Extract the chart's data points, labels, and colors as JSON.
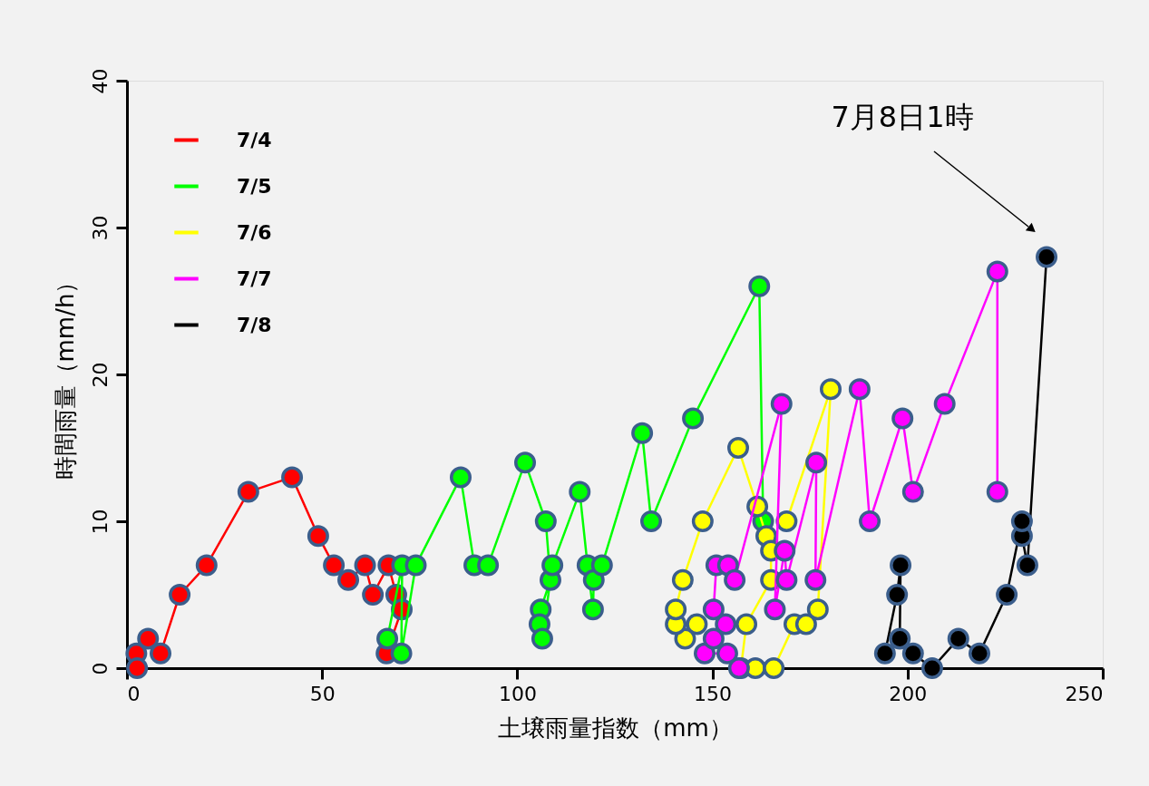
{
  "chart_data": {
    "type": "line",
    "xlabel": "土壌雨量指数（mm）",
    "ylabel": "時間雨量（mm/h）",
    "xlim": [
      0,
      250
    ],
    "xticks": [
      0,
      50,
      100,
      150,
      200,
      250
    ],
    "ylim": [
      0,
      40
    ],
    "yticks": [
      0,
      10,
      20,
      30,
      40
    ],
    "grid": false,
    "legend": "top left",
    "marker": "circle",
    "line_style": "solid",
    "annotations": [
      "7月8日1時"
    ],
    "series": [
      {
        "name": "7/4",
        "color": "#ff0000",
        "x": [
          2.4,
          2.6,
          5.4,
          8.6,
          13.5,
          20.4,
          31.1,
          42.3,
          49,
          53,
          56.7,
          61,
          63,
          67,
          69,
          70.4,
          66.5
        ],
        "values": [
          1,
          0,
          2,
          1,
          5,
          7,
          12,
          13,
          9,
          7,
          6,
          7,
          5,
          7,
          5,
          4,
          1
        ]
      },
      {
        "name": "7/5",
        "color": "#00ff00",
        "x": [
          66.7,
          70.5,
          70.3,
          74,
          85.5,
          89,
          92.5,
          102,
          107.3,
          108.5,
          106,
          105.7,
          106.4,
          109,
          116,
          118,
          119.4,
          119.6,
          121.7,
          132,
          134.3,
          145,
          162,
          163
        ],
        "values": [
          2,
          7,
          1,
          7,
          13,
          7,
          7,
          14,
          10,
          6,
          4,
          3,
          2,
          7,
          12,
          7,
          4,
          6,
          7,
          16,
          10,
          17,
          26,
          10
        ]
      },
      {
        "name": "7/6",
        "color": "#ffff00",
        "x": [
          146,
          143,
          140.6,
          140.6,
          142.4,
          147.5,
          156.6,
          161.5,
          163.8,
          165,
          165,
          158.7,
          157.3,
          161,
          165.7,
          171,
          174,
          177,
          180.3,
          169
        ],
        "values": [
          3,
          2,
          3,
          4,
          6,
          10,
          15,
          11,
          9,
          8,
          6,
          3,
          0,
          0,
          0,
          3,
          3,
          4,
          19,
          10
        ]
      },
      {
        "name": "7/7",
        "color": "#ff00ff",
        "x": [
          156.8,
          153.8,
          148,
          150.3,
          153.4,
          150.3,
          151,
          154,
          155.7,
          167.7,
          166,
          168.5,
          169,
          176.6,
          176.4,
          187.7,
          190.3,
          198.7,
          201.4,
          209.5,
          223,
          223
        ],
        "values": [
          0,
          1,
          1,
          2,
          3,
          4,
          7,
          7,
          6,
          18,
          4,
          8,
          6,
          14,
          6,
          19,
          10,
          17,
          12,
          18,
          27,
          12
        ]
      },
      {
        "name": "7/8",
        "color": "#000000",
        "x": [
          235.6,
          230.7,
          229.3,
          229.3,
          225.4,
          218.4,
          213,
          206.3,
          201.4,
          198,
          198.2,
          197.3,
          194.2
        ],
        "values": [
          28,
          7,
          9,
          10,
          5,
          1,
          2,
          0,
          1,
          2,
          7,
          5,
          1
        ]
      }
    ]
  }
}
